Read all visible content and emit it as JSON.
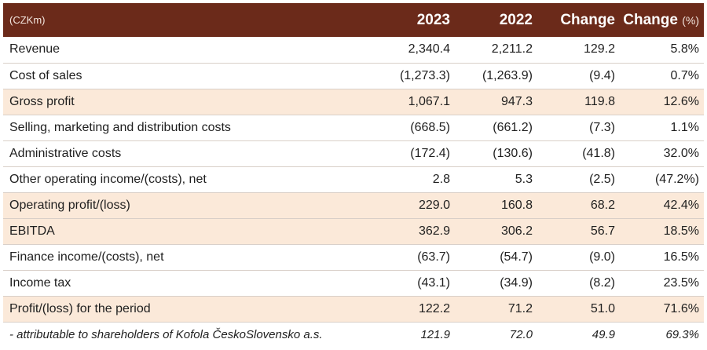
{
  "header": {
    "unit": "(CZKm)",
    "col_2023": "2023",
    "col_2022": "2022",
    "col_change": "Change",
    "col_change_pct_word": "Change",
    "col_change_pct_unit": "(%)"
  },
  "rows": [
    {
      "label": "Revenue",
      "y2023": "2,340.4",
      "y2022": "2,211.2",
      "change": "129.2",
      "pct": "5.8%"
    },
    {
      "label": "Cost of sales",
      "y2023": "(1,273.3)",
      "y2022": "(1,263.9)",
      "change": "(9.4)",
      "pct": "0.7%"
    },
    {
      "label": "Gross profit",
      "y2023": "1,067.1",
      "y2022": "947.3",
      "change": "119.8",
      "pct": "12.6%"
    },
    {
      "label": "Selling, marketing and distribution costs",
      "y2023": "(668.5)",
      "y2022": "(661.2)",
      "change": "(7.3)",
      "pct": "1.1%"
    },
    {
      "label": "Administrative costs",
      "y2023": "(172.4)",
      "y2022": "(130.6)",
      "change": "(41.8)",
      "pct": "32.0%"
    },
    {
      "label": "Other operating income/(costs), net",
      "y2023": "2.8",
      "y2022": "5.3",
      "change": "(2.5)",
      "pct": "(47.2%)"
    },
    {
      "label": "Operating profit/(loss)",
      "y2023": "229.0",
      "y2022": "160.8",
      "change": "68.2",
      "pct": "42.4%"
    },
    {
      "label": "EBITDA",
      "y2023": "362.9",
      "y2022": "306.2",
      "change": "56.7",
      "pct": "18.5%"
    },
    {
      "label": "Finance income/(costs), net",
      "y2023": "(63.7)",
      "y2022": "(54.7)",
      "change": "(9.0)",
      "pct": "16.5%"
    },
    {
      "label": "Income tax",
      "y2023": "(43.1)",
      "y2022": "(34.9)",
      "change": "(8.2)",
      "pct": "23.5%"
    },
    {
      "label": "Profit/(loss) for the period",
      "y2023": "122.2",
      "y2022": "71.2",
      "change": "51.0",
      "pct": "71.6%"
    },
    {
      "label": "- attributable to shareholders of Kofola ČeskoSlovensko a.s.",
      "y2023": "121.9",
      "y2022": "72.0",
      "change": "49.9",
      "pct": "69.3%"
    }
  ],
  "colors": {
    "header_bg": "#6b2a1a",
    "highlight_row_bg": "#fbe9d9"
  }
}
